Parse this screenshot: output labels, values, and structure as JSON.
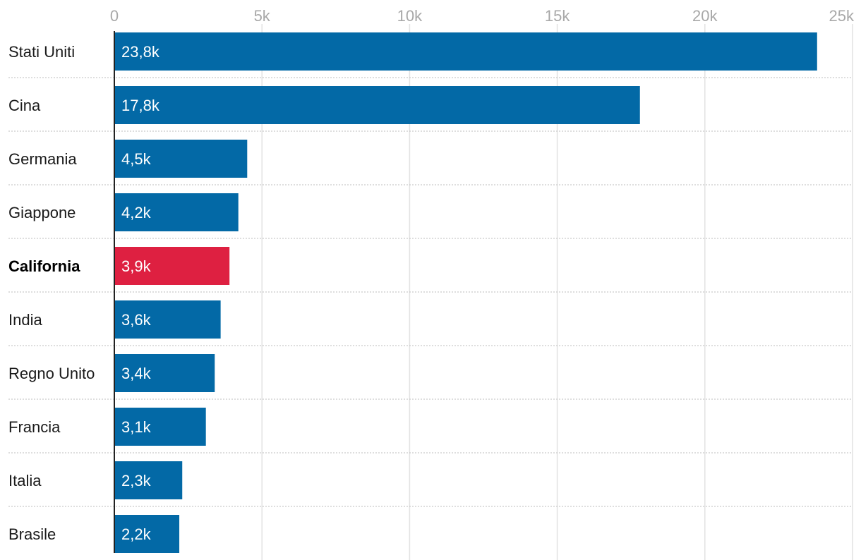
{
  "chart_data": {
    "type": "bar",
    "orientation": "horizontal",
    "categories": [
      "Stati Uniti",
      "Cina",
      "Germania",
      "Giappone",
      "California",
      "India",
      "Regno Unito",
      "Francia",
      "Italia",
      "Brasile"
    ],
    "values": [
      23.8,
      17.8,
      4.5,
      4.2,
      3.9,
      3.6,
      3.4,
      3.1,
      2.3,
      2.2
    ],
    "value_labels": [
      "23,8k",
      "17,8k",
      "4,5k",
      "4,2k",
      "3,9k",
      "3,6k",
      "3,4k",
      "3,1k",
      "2,3k",
      "2,2k"
    ],
    "unit_scale": "thousands",
    "highlight_category": "California",
    "colors": {
      "default": "#0369a6",
      "highlight": "#de2041",
      "grid": "#e2e2e2",
      "axis": "#222222"
    },
    "xlim": [
      0,
      25
    ],
    "x_ticks": [
      0,
      5,
      10,
      15,
      20,
      25
    ],
    "x_tick_labels": [
      "0",
      "5k",
      "10k",
      "15k",
      "20k",
      "25k"
    ],
    "grid": true,
    "title": "",
    "xlabel": "",
    "ylabel": ""
  }
}
